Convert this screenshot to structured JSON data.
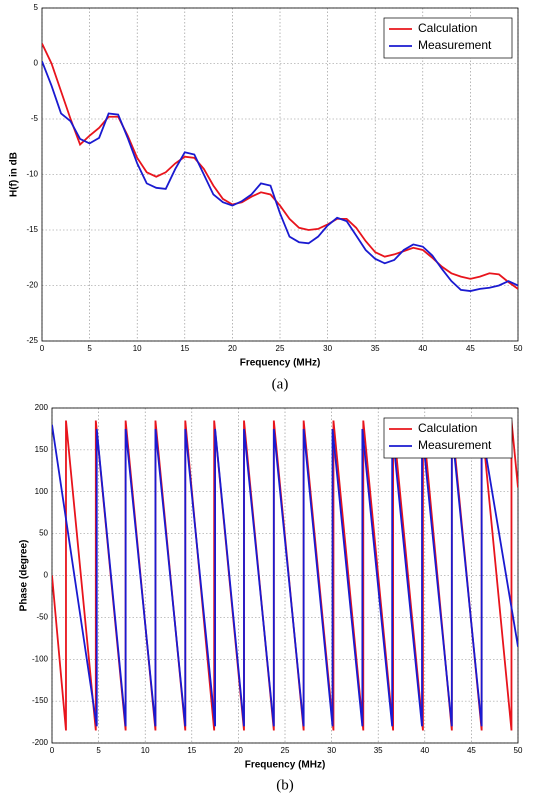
{
  "chart_data": [
    {
      "type": "line",
      "xlabel": "Frequency (MHz)",
      "ylabel": "H(f) in dB",
      "caption": "(a)",
      "x": [
        0,
        1,
        2,
        3,
        4,
        5,
        6,
        7,
        8,
        9,
        10,
        11,
        12,
        13,
        14,
        15,
        16,
        17,
        18,
        19,
        20,
        21,
        22,
        23,
        24,
        25,
        26,
        27,
        28,
        29,
        30,
        31,
        32,
        33,
        34,
        35,
        36,
        37,
        38,
        39,
        40,
        41,
        42,
        43,
        44,
        45,
        46,
        47,
        48,
        49,
        50
      ],
      "series": [
        {
          "name": "Calculation",
          "color": "#e8141c",
          "values": [
            1.8,
            0,
            -2.5,
            -5,
            -7.3,
            -6.5,
            -5.8,
            -4.8,
            -4.8,
            -6.5,
            -8.5,
            -9.8,
            -10.2,
            -9.8,
            -9,
            -8.4,
            -8.5,
            -9.5,
            -11,
            -12.2,
            -12.7,
            -12.5,
            -12,
            -11.6,
            -11.8,
            -12.8,
            -14,
            -14.8,
            -15,
            -14.9,
            -14.5,
            -14,
            -14,
            -14.8,
            -16,
            -17,
            -17.4,
            -17.2,
            -16.9,
            -16.6,
            -16.8,
            -17.5,
            -18.3,
            -18.9,
            -19.2,
            -19.4,
            -19.2,
            -18.9,
            -19,
            -19.7,
            -20.3
          ]
        },
        {
          "name": "Measurement",
          "color": "#1a1ad0",
          "values": [
            0.2,
            -2,
            -4.5,
            -5.2,
            -6.8,
            -7.2,
            -6.7,
            -4.5,
            -4.6,
            -6.7,
            -9,
            -10.8,
            -11.2,
            -11.3,
            -9.5,
            -8,
            -8.2,
            -10,
            -11.8,
            -12.5,
            -12.8,
            -12.4,
            -11.8,
            -10.8,
            -11,
            -13.5,
            -15.6,
            -16.1,
            -16.2,
            -15.6,
            -14.6,
            -13.9,
            -14.2,
            -15.5,
            -16.8,
            -17.6,
            -18,
            -17.7,
            -16.8,
            -16.3,
            -16.5,
            -17.3,
            -18.5,
            -19.6,
            -20.4,
            -20.5,
            -20.3,
            -20.2,
            -20,
            -19.6,
            -20
          ]
        }
      ],
      "xlim": [
        0,
        50
      ],
      "ylim": [
        -25,
        5
      ],
      "xticks": [
        0,
        5,
        10,
        15,
        20,
        25,
        30,
        35,
        40,
        45,
        50
      ],
      "yticks": [
        -25,
        -20,
        -15,
        -10,
        -5,
        0,
        5
      ],
      "grid": true,
      "legend": "upper right"
    },
    {
      "type": "line",
      "xlabel": "Frequency (MHz)",
      "ylabel": "Phase (degree)",
      "caption": "(b)",
      "series": [
        {
          "name": "Calculation",
          "color": "#e8141c",
          "x": [
            0,
            1.5,
            1.5,
            4.7,
            4.7,
            7.9,
            7.9,
            11.1,
            11.1,
            14.3,
            14.3,
            17.4,
            17.4,
            20.6,
            20.6,
            23.8,
            23.8,
            27.0,
            27.0,
            30.2,
            30.2,
            33.4,
            33.4,
            36.6,
            36.6,
            39.8,
            39.8,
            42.9,
            42.9,
            46.1,
            46.1,
            49.3,
            49.3,
            50
          ],
          "values": [
            0,
            -185,
            185,
            -185,
            185,
            -185,
            185,
            -185,
            185,
            -185,
            185,
            -185,
            185,
            -185,
            185,
            -185,
            185,
            -185,
            185,
            -185,
            185,
            -185,
            185,
            -185,
            185,
            -185,
            185,
            -185,
            185,
            -185,
            185,
            -185,
            185,
            105
          ]
        },
        {
          "name": "Measurement",
          "color": "#1a1ad0",
          "x": [
            0,
            4.8,
            4.8,
            7.9,
            7.9,
            11.1,
            11.1,
            14.3,
            14.3,
            17.5,
            17.5,
            20.6,
            20.6,
            23.8,
            23.8,
            27.0,
            27.0,
            30.1,
            30.1,
            33.3,
            33.3,
            36.5,
            36.5,
            39.7,
            39.7,
            42.9,
            42.9,
            46.1,
            46.1,
            50
          ],
          "values": [
            180,
            -180,
            175,
            -180,
            175,
            -180,
            175,
            -180,
            175,
            -180,
            175,
            -180,
            175,
            -180,
            175,
            -180,
            175,
            -180,
            175,
            -180,
            175,
            -180,
            175,
            -180,
            175,
            -180,
            175,
            -180,
            175,
            -85
          ]
        }
      ],
      "xlim": [
        0,
        50
      ],
      "ylim": [
        -200,
        200
      ],
      "xticks": [
        0,
        5,
        10,
        15,
        20,
        25,
        30,
        35,
        40,
        45,
        50
      ],
      "yticks": [
        -200,
        -150,
        -100,
        -50,
        0,
        50,
        100,
        150,
        200
      ],
      "grid": true,
      "legend": "upper right"
    }
  ]
}
